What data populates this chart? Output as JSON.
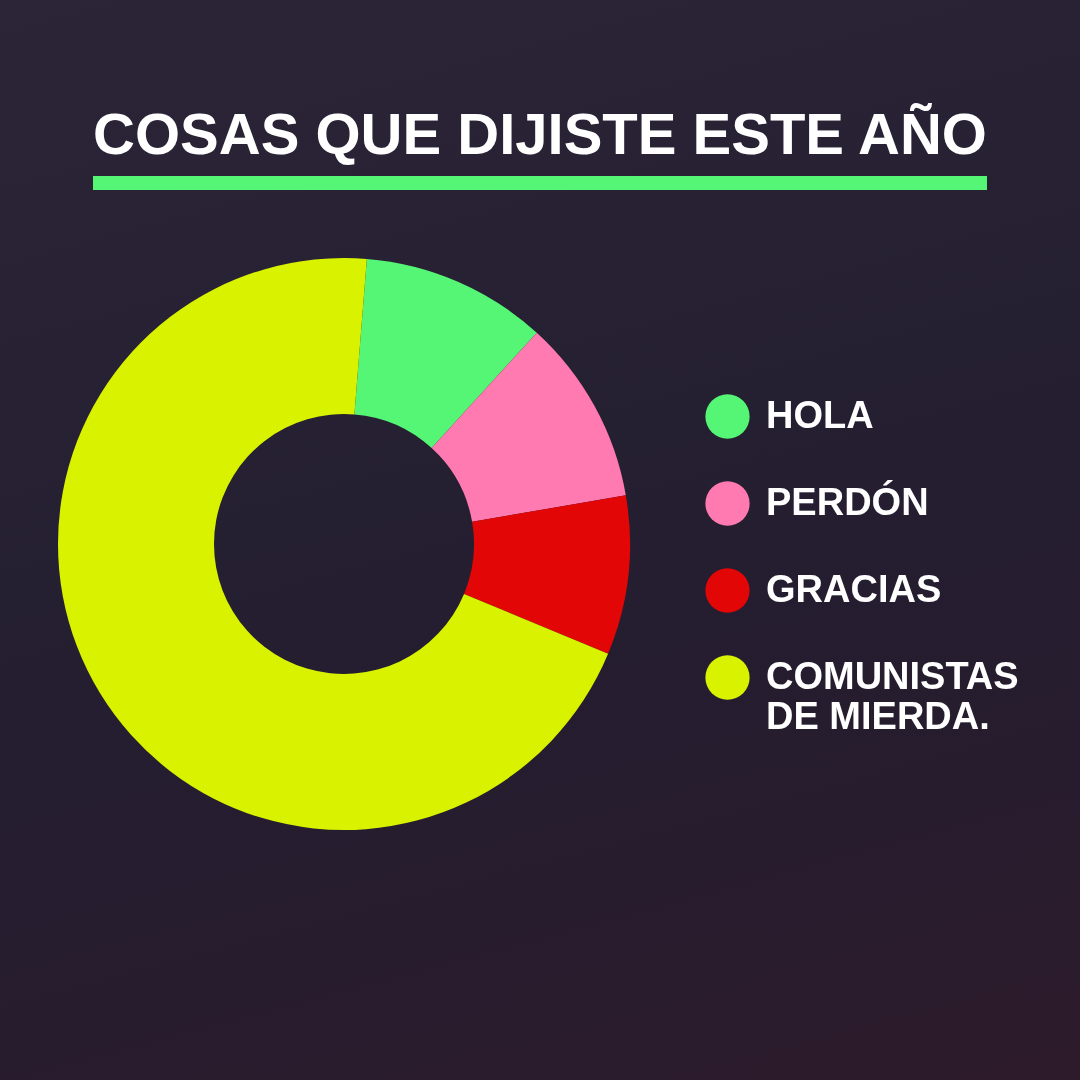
{
  "chart_data": {
    "type": "donut",
    "title": "COSAS QUE DIJISTE ESTE AÑO",
    "categories": [
      "HOLA",
      "PERDÓN",
      "GRACIAS",
      "COMUNISTAS DE MIERDA."
    ],
    "values": [
      10.5,
      10.5,
      9,
      70
    ],
    "colors": [
      "#55f575",
      "#ff7ab0",
      "#e20606",
      "#d8f200"
    ],
    "legend": "right"
  }
}
